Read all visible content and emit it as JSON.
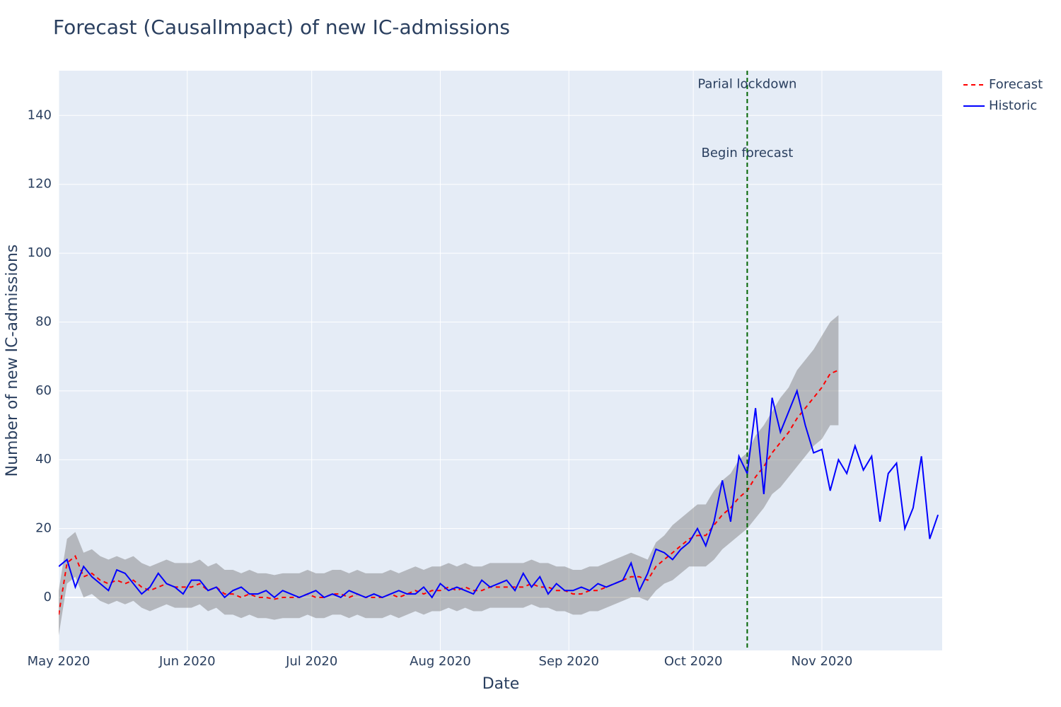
{
  "chart_data": {
    "type": "line",
    "title": "Forecast (CausalImpact) of new IC-admissions",
    "x_label": "Date",
    "y_label": "Number of new IC-admissions",
    "xlim": [
      0,
      213
    ],
    "ylim": [
      -15.4,
      153
    ],
    "xticks": [
      {
        "value": 0,
        "label": "May 2020"
      },
      {
        "value": 31,
        "label": "Jun 2020"
      },
      {
        "value": 61,
        "label": "Jul 2020"
      },
      {
        "value": 92,
        "label": "Aug 2020"
      },
      {
        "value": 123,
        "label": "Sep 2020"
      },
      {
        "value": 153,
        "label": "Oct 2020"
      },
      {
        "value": 184,
        "label": "Nov 2020"
      }
    ],
    "yticks": [
      0,
      20,
      40,
      60,
      80,
      100,
      120,
      140
    ],
    "grid": true,
    "x": [
      0,
      2,
      4,
      6,
      8,
      10,
      12,
      14,
      16,
      18,
      20,
      22,
      24,
      26,
      28,
      30,
      32,
      34,
      36,
      38,
      40,
      42,
      44,
      46,
      48,
      50,
      52,
      54,
      56,
      58,
      60,
      62,
      64,
      66,
      68,
      70,
      72,
      74,
      76,
      78,
      80,
      82,
      84,
      86,
      88,
      90,
      92,
      94,
      96,
      98,
      100,
      102,
      104,
      106,
      108,
      110,
      112,
      114,
      116,
      118,
      120,
      122,
      124,
      126,
      128,
      130,
      132,
      134,
      136,
      138,
      140,
      142,
      144,
      146,
      148,
      150,
      152,
      154,
      156,
      158,
      160,
      162,
      164,
      166,
      168,
      170,
      172,
      174,
      176,
      178,
      180,
      182,
      184,
      186,
      188,
      190,
      192,
      194,
      196,
      198,
      200,
      202,
      204,
      206,
      208,
      210,
      212
    ],
    "series": [
      {
        "name": "Forecast",
        "color": "#ff0000",
        "dash": true,
        "values": [
          -5,
          10,
          12,
          6,
          7,
          5,
          4,
          5,
          4,
          5,
          3,
          2,
          3,
          4,
          3,
          3,
          3,
          4,
          2,
          3,
          1,
          1,
          0,
          1,
          0,
          0,
          -0.5,
          0,
          0,
          0,
          1,
          0,
          0,
          1,
          1,
          0,
          1,
          0,
          0,
          0,
          1,
          0,
          1,
          2,
          1,
          2,
          2,
          3,
          2,
          3,
          2,
          2,
          3,
          3,
          3,
          3,
          3,
          4,
          3,
          3,
          2,
          2,
          1,
          1,
          2,
          2,
          3,
          4,
          5,
          6,
          6,
          5,
          9,
          11,
          13,
          15,
          17,
          18,
          18,
          21,
          24,
          26,
          29,
          31,
          35,
          38,
          42,
          45,
          48,
          52,
          55,
          58,
          61,
          65,
          66,
          null,
          null,
          null,
          null,
          null,
          null,
          null,
          null,
          null,
          null,
          null,
          null
        ]
      },
      {
        "name": "Historic",
        "color": "#0000ff",
        "dash": false,
        "values": [
          9,
          11,
          3,
          9,
          6,
          4,
          2,
          8,
          7,
          4,
          1,
          3,
          7,
          4,
          3,
          1,
          5,
          5,
          2,
          3,
          0,
          2,
          3,
          1,
          1,
          2,
          0,
          2,
          1,
          0,
          1,
          2,
          0,
          1,
          0,
          2,
          1,
          0,
          1,
          0,
          1,
          2,
          1,
          1,
          3,
          0,
          4,
          2,
          3,
          2,
          1,
          5,
          3,
          4,
          5,
          2,
          7,
          3,
          6,
          1,
          4,
          2,
          2,
          3,
          2,
          4,
          3,
          4,
          5,
          10,
          2,
          7,
          14,
          13,
          11,
          14,
          16,
          20,
          15,
          22,
          34,
          22,
          41,
          36,
          55,
          30,
          58,
          48,
          54,
          60,
          50,
          42,
          43,
          31,
          40,
          36,
          44,
          37,
          41,
          22,
          36,
          39,
          20,
          26,
          41,
          17,
          24
        ]
      }
    ],
    "band": {
      "color": "rgba(120,120,120,0.45)",
      "upper": [
        2,
        17,
        19,
        13,
        14,
        12,
        11,
        12,
        11,
        12,
        10,
        9,
        10,
        11,
        10,
        10,
        10,
        11,
        9,
        10,
        8,
        8,
        7,
        8,
        7,
        7,
        6.5,
        7,
        7,
        7,
        8,
        7,
        7,
        8,
        8,
        7,
        8,
        7,
        7,
        7,
        8,
        7,
        8,
        9,
        8,
        9,
        9,
        10,
        9,
        10,
        9,
        9,
        10,
        10,
        10,
        10,
        10,
        11,
        10,
        10,
        9,
        9,
        8,
        8,
        9,
        9,
        10,
        11,
        12,
        13,
        12,
        11,
        16,
        18,
        21,
        23,
        25,
        27,
        27,
        31,
        34,
        36,
        40,
        42,
        47,
        50,
        54,
        58,
        61,
        66,
        69,
        72,
        76,
        80,
        82,
        null,
        null,
        null,
        null,
        null,
        null,
        null,
        null,
        null,
        null,
        null,
        null
      ],
      "lower": [
        -11,
        4,
        6,
        0,
        1,
        -1,
        -2,
        -1,
        -2,
        -1,
        -3,
        -4,
        -3,
        -2,
        -3,
        -3,
        -3,
        -2,
        -4,
        -3,
        -5,
        -5,
        -6,
        -5,
        -6,
        -6,
        -6.5,
        -6,
        -6,
        -6,
        -5,
        -6,
        -6,
        -5,
        -5,
        -6,
        -5,
        -6,
        -6,
        -6,
        -5,
        -6,
        -5,
        -4,
        -5,
        -4,
        -4,
        -3,
        -4,
        -3,
        -4,
        -4,
        -3,
        -3,
        -3,
        -3,
        -3,
        -2,
        -3,
        -3,
        -4,
        -4,
        -5,
        -5,
        -4,
        -4,
        -3,
        -2,
        -1,
        0,
        0,
        -1,
        2,
        4,
        5,
        7,
        9,
        9,
        9,
        11,
        14,
        16,
        18,
        20,
        23,
        26,
        30,
        32,
        35,
        38,
        41,
        44,
        46,
        50,
        50,
        null,
        null,
        null,
        null,
        null,
        null,
        null,
        null,
        null,
        null,
        null,
        null
      ]
    },
    "vline": {
      "x": 166,
      "color": "#006400"
    },
    "annotations": [
      {
        "text": "Parial lockdown",
        "x": 166,
        "y": 149
      },
      {
        "text": "Begin forecast",
        "x": 166,
        "y": 129
      }
    ]
  }
}
